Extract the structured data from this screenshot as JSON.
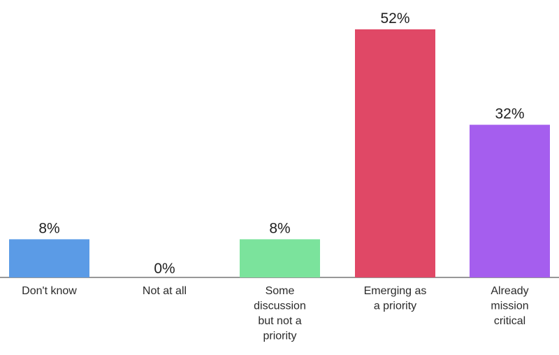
{
  "chart_data": {
    "type": "bar",
    "categories": [
      "Don't know",
      "Not at all",
      "Some discussion but not a priority",
      "Emerging as a priority",
      "Already mission critical"
    ],
    "category_lines": [
      [
        "Don't know"
      ],
      [
        "Not at all"
      ],
      [
        "Some",
        "discussion",
        "but not a",
        "priority"
      ],
      [
        "Emerging as",
        "a priority"
      ],
      [
        "Already",
        "mission",
        "critical"
      ]
    ],
    "values": [
      8,
      0,
      8,
      52,
      32
    ],
    "value_labels": [
      "8%",
      "0%",
      "8%",
      "52%",
      "32%"
    ],
    "colors": [
      "#5b9be6",
      "#7fd08a",
      "#7be39c",
      "#e04866",
      "#a55eee"
    ],
    "ylim": [
      0,
      52
    ],
    "grid": false,
    "legend": "none",
    "title": "",
    "xlabel": "",
    "ylabel": ""
  }
}
